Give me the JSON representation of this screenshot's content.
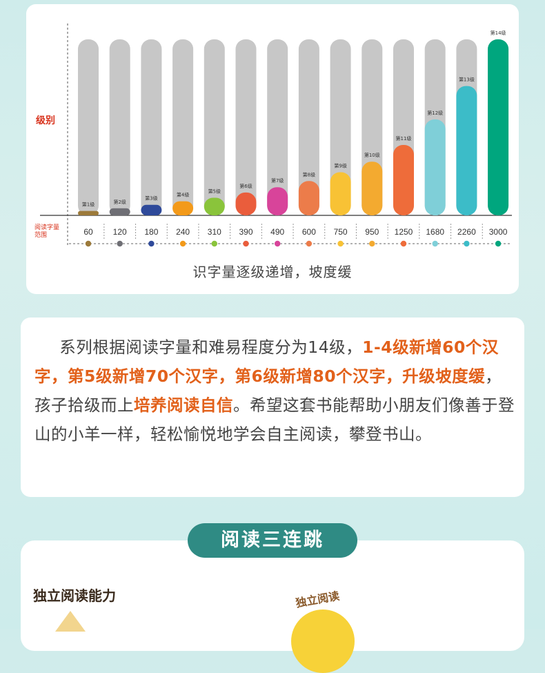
{
  "chart_data": {
    "type": "bar",
    "ylabel": "级别",
    "range_label": "阅读字量范围",
    "caption": "识字量逐级递增，坡度缓",
    "categories": [
      "第1级",
      "第2级",
      "第3级",
      "第4级",
      "第5级",
      "第6级",
      "第7级",
      "第8级",
      "第9级",
      "第10级",
      "第11级",
      "第12级",
      "第13级",
      "第14级"
    ],
    "word_counts": [
      "60",
      "120",
      "180",
      "240",
      "310",
      "390",
      "490",
      "600",
      "750",
      "950",
      "1250",
      "1680",
      "2260",
      "3000"
    ],
    "values": [
      60,
      120,
      180,
      240,
      310,
      390,
      490,
      600,
      750,
      950,
      1250,
      1680,
      2260,
      3000
    ],
    "ylim": [
      0,
      3000
    ],
    "colors": [
      "#9c7a3a",
      "#6f6f75",
      "#2f4a9a",
      "#f39a1a",
      "#8ac43b",
      "#ea5d3c",
      "#d8449a",
      "#ec7c4a",
      "#f8c235",
      "#f3aa30",
      "#ee6c3a",
      "#7fcfd8",
      "#3cbcc8",
      "#00a67e"
    ],
    "track_color": "#c7c7c7",
    "grid": false,
    "legend": "none"
  },
  "text": {
    "p1": "系列根据阅读字量和难易程度分为14级，",
    "h1": "1-4级新增60个汉字，第5级新增70个汉字，第6级新增80个汉字，升级坡度缓",
    "p2": "，孩子拾级而上",
    "h2": "培养阅读自信",
    "p3": "。希望这套书能帮助小朋友们像善于登山的小羊一样，轻松愉悦地学会自主阅读，攀登书山。"
  },
  "section": {
    "title": "阅读三连跳",
    "ability_label": "独立阅读能力",
    "tag": "独立阅读"
  }
}
